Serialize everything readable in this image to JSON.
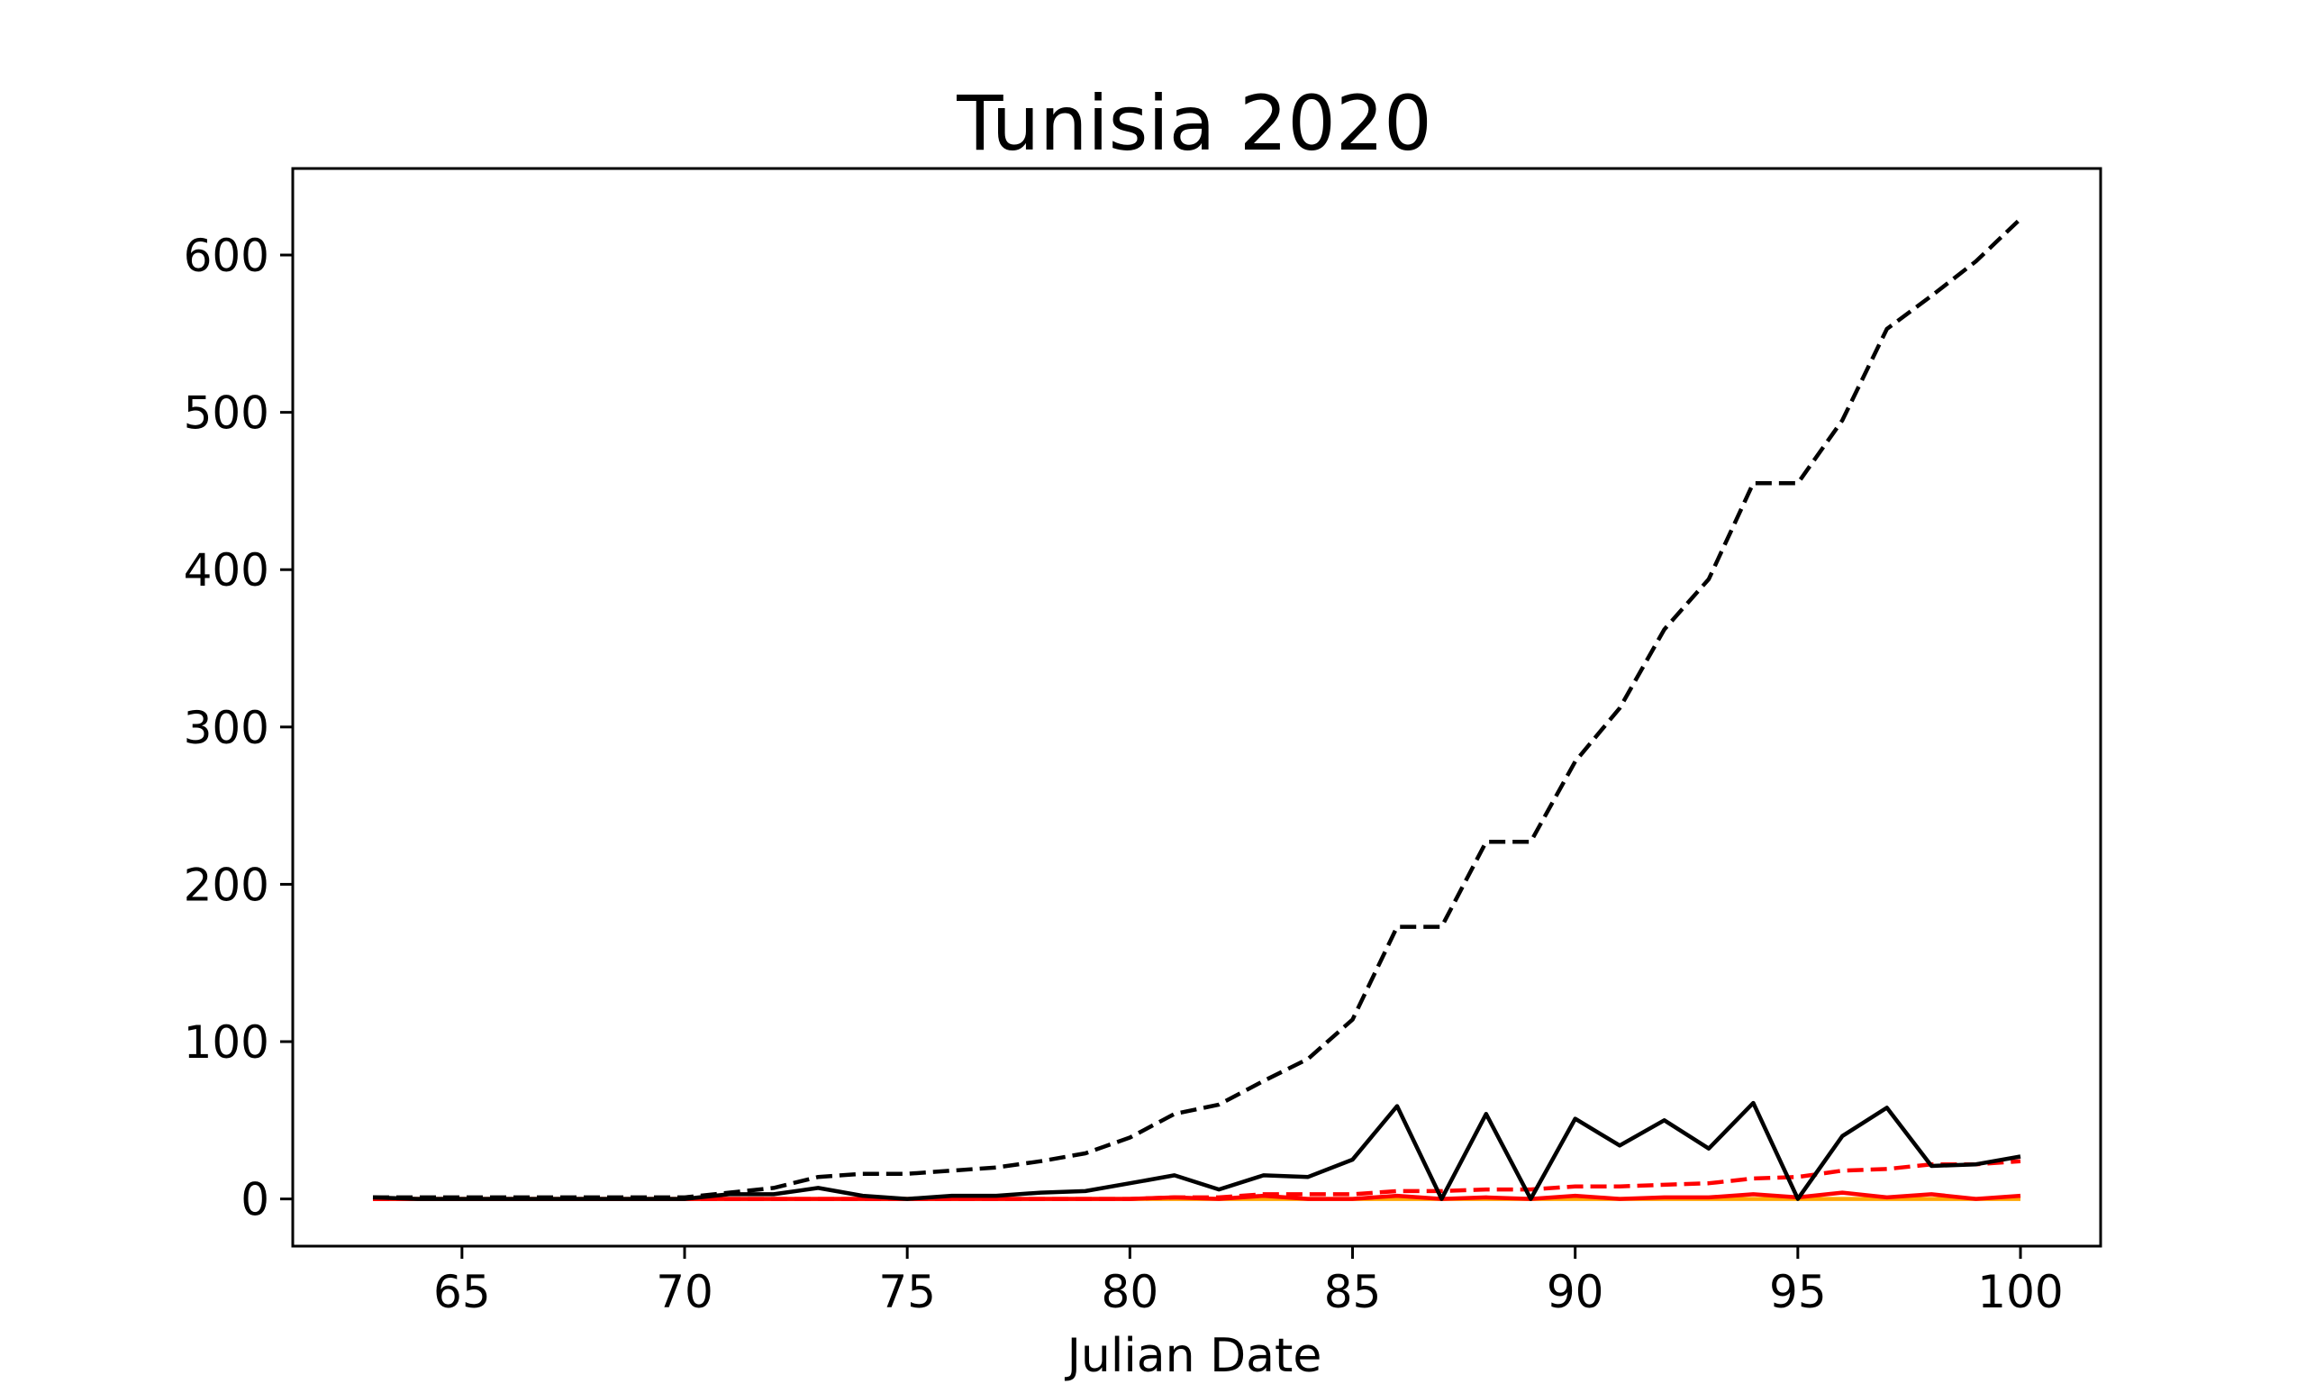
{
  "chart_data": {
    "type": "line",
    "title": "Tunisia 2020",
    "xlabel": "Julian Date",
    "ylabel": "",
    "xlim": [
      61.2,
      101.8
    ],
    "ylim": [
      -30,
      655
    ],
    "xticks": [
      65,
      70,
      75,
      80,
      85,
      90,
      95,
      100
    ],
    "yticks": [
      0,
      100,
      200,
      300,
      400,
      500,
      600
    ],
    "grid": false,
    "legend": "none",
    "x": [
      63,
      64,
      65,
      66,
      67,
      68,
      69,
      70,
      71,
      72,
      73,
      74,
      75,
      76,
      77,
      78,
      79,
      80,
      81,
      82,
      83,
      84,
      85,
      86,
      87,
      88,
      89,
      90,
      91,
      92,
      93,
      94,
      95,
      96,
      97,
      98,
      99,
      100
    ],
    "series": [
      {
        "color": "#000000",
        "style": "dashed",
        "values": [
          1,
          1,
          1,
          1,
          1,
          1,
          1,
          1,
          4,
          7,
          14,
          16,
          16,
          18,
          20,
          24,
          29,
          39,
          54,
          60,
          75,
          89,
          114,
          173,
          173,
          227,
          227,
          278,
          312,
          362,
          394,
          455,
          455,
          495,
          553,
          574,
          596,
          623
        ]
      },
      {
        "color": "#000000",
        "style": "solid",
        "values": [
          1,
          0,
          0,
          0,
          0,
          0,
          0,
          0,
          3,
          3,
          7,
          2,
          0,
          2,
          2,
          4,
          5,
          10,
          15,
          6,
          15,
          14,
          25,
          59,
          0,
          54,
          0,
          51,
          34,
          50,
          32,
          61,
          0,
          40,
          58,
          21,
          22,
          27
        ]
      },
      {
        "color": "#ff0000",
        "style": "dashed",
        "values": [
          0,
          0,
          0,
          0,
          0,
          0,
          0,
          0,
          0,
          0,
          0,
          0,
          0,
          0,
          0,
          0,
          0,
          0,
          1,
          1,
          3,
          3,
          3,
          5,
          5,
          6,
          6,
          8,
          8,
          9,
          10,
          13,
          14,
          18,
          19,
          22,
          22,
          24
        ]
      },
      {
        "color": "#ff0000",
        "style": "solid",
        "values": [
          0,
          0,
          0,
          0,
          0,
          0,
          0,
          0,
          0,
          0,
          0,
          0,
          0,
          0,
          0,
          0,
          0,
          0,
          1,
          0,
          2,
          0,
          0,
          2,
          0,
          1,
          0,
          2,
          0,
          1,
          1,
          3,
          1,
          4,
          1,
          3,
          0,
          2
        ]
      },
      {
        "color": "#ffa500",
        "style": "solid",
        "values": [
          0,
          0,
          0,
          0,
          0,
          0,
          0,
          0,
          0,
          0,
          0,
          0,
          0,
          0,
          0,
          0,
          0,
          0,
          0,
          0,
          0,
          0,
          0,
          0,
          0,
          0,
          0,
          0,
          0,
          0,
          0,
          0,
          0,
          0,
          0,
          0,
          0,
          0
        ]
      }
    ]
  }
}
